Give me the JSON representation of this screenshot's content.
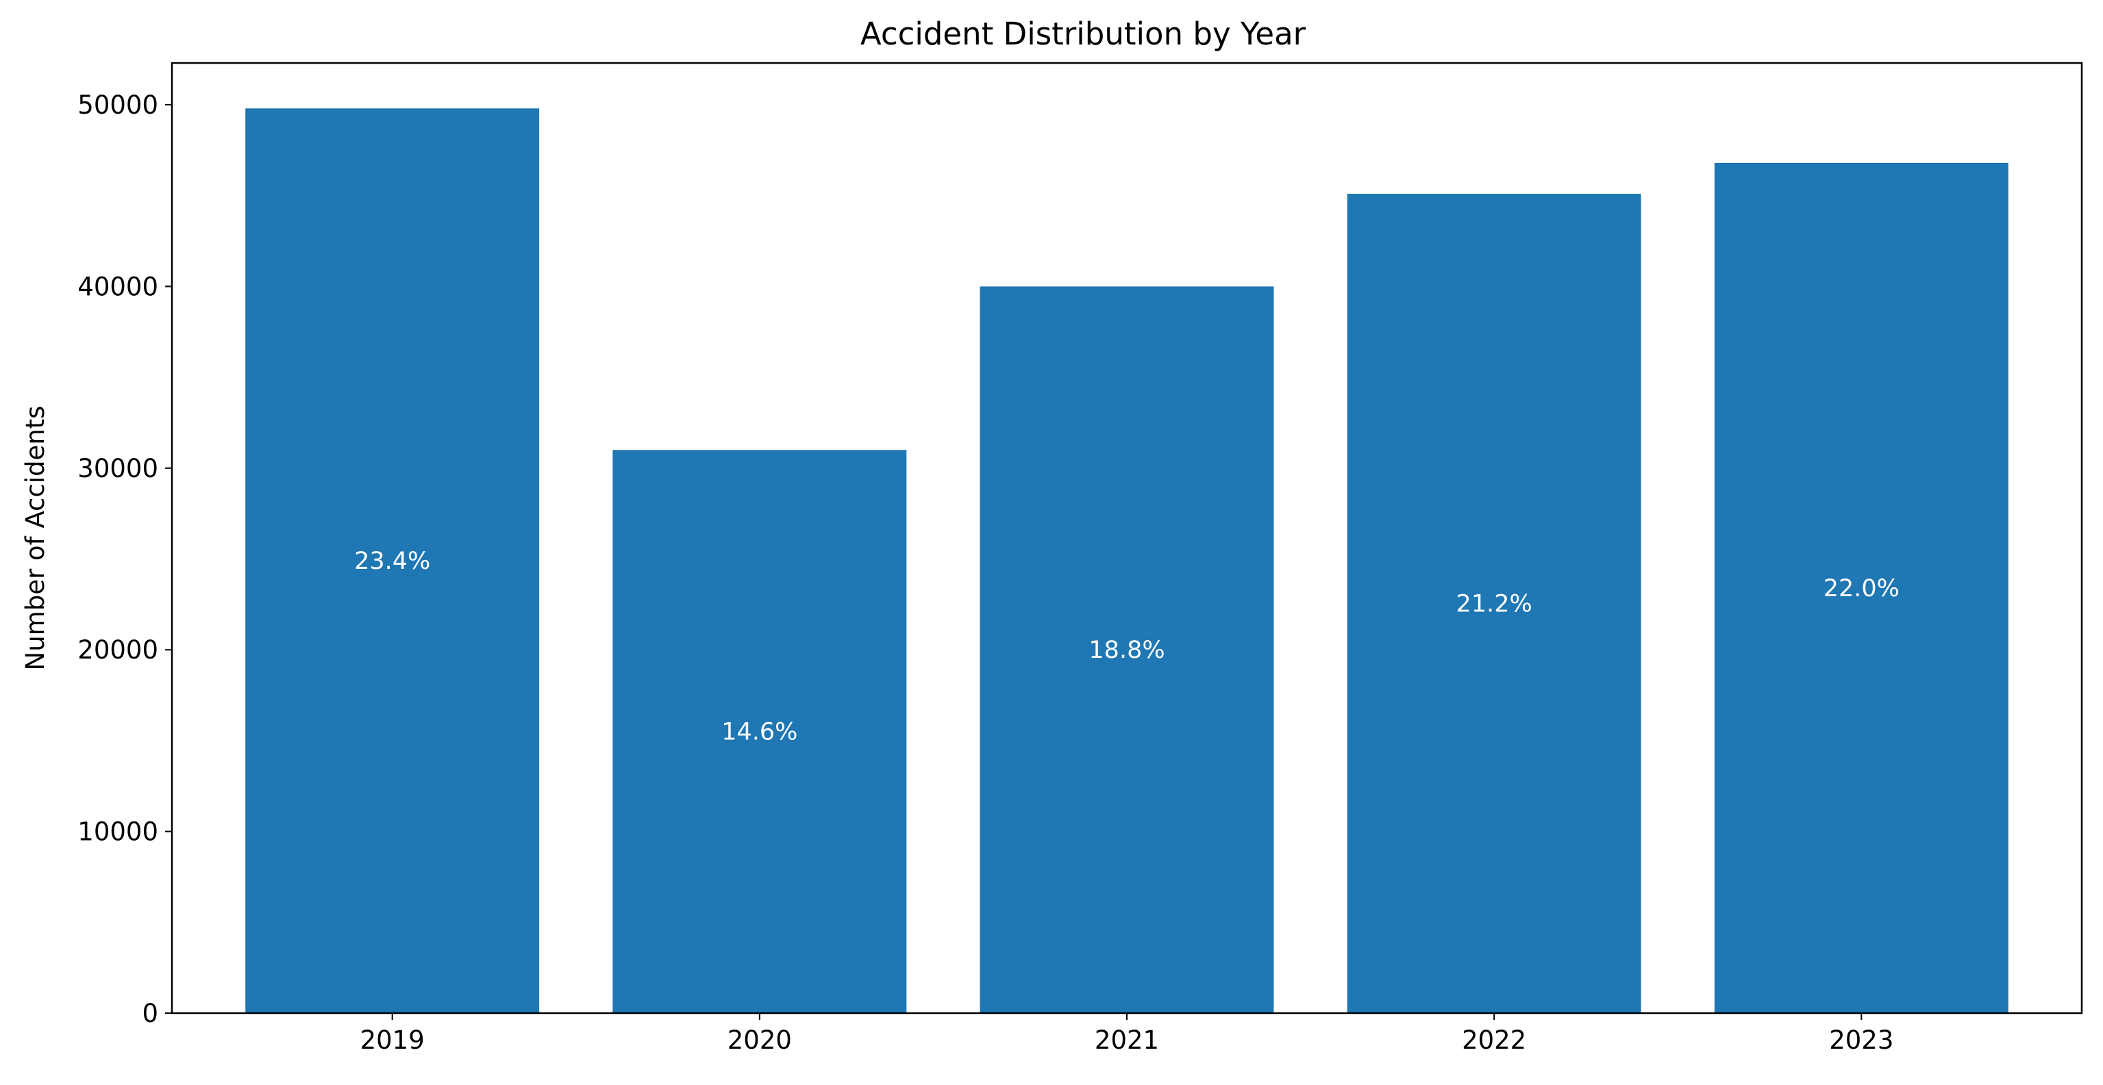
{
  "chart_data": {
    "type": "bar",
    "title": "Accident Distribution by Year",
    "xlabel": "",
    "ylabel": "Number of Accidents",
    "categories": [
      "2019",
      "2020",
      "2021",
      "2022",
      "2023"
    ],
    "values": [
      49800,
      31000,
      40000,
      45100,
      46800
    ],
    "data_labels": [
      "23.4%",
      "14.6%",
      "18.8%",
      "21.2%",
      "22.0%"
    ],
    "ylim": [
      0,
      52300
    ],
    "yticks": [
      0,
      10000,
      20000,
      30000,
      40000,
      50000
    ],
    "ytick_labels": [
      "0",
      "10000",
      "20000",
      "30000",
      "40000",
      "50000"
    ],
    "grid": false,
    "colors": {
      "bar": "#1f77b4",
      "axis": "#000000",
      "data_label": "#ffffff"
    }
  }
}
